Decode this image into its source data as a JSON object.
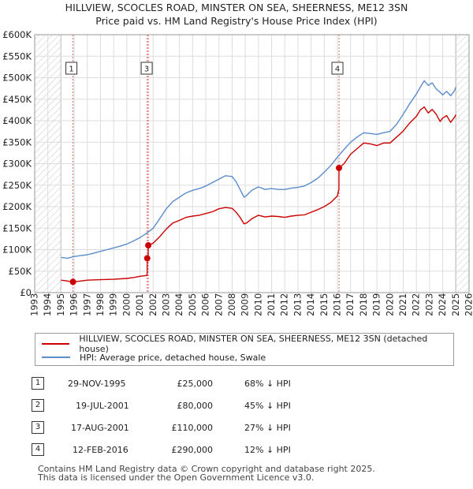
{
  "title_line1": "HILLVIEW, SCOCLES ROAD, MINSTER ON SEA, SHEERNESS, ME12 3SN",
  "title_line2": "Price paid vs. HM Land Registry's House Price Index (HPI)",
  "chart_data": {
    "type": "line",
    "title": "HILLVIEW, SCOCLES ROAD, MINSTER ON SEA, SHEERNESS, ME12 3SN",
    "subtitle": "Price paid vs. HM Land Registry's House Price Index (HPI)",
    "xlabel": "",
    "ylabel": "",
    "xlim": [
      1993,
      2026
    ],
    "ylim": [
      0,
      600000
    ],
    "grid": true,
    "x_ticks": [
      1993,
      1994,
      1995,
      1996,
      1997,
      1998,
      1999,
      2000,
      2001,
      2002,
      2003,
      2004,
      2005,
      2006,
      2007,
      2008,
      2009,
      2010,
      2011,
      2012,
      2013,
      2014,
      2015,
      2016,
      2017,
      2018,
      2019,
      2020,
      2021,
      2022,
      2023,
      2024,
      2025,
      2026
    ],
    "y_ticks": [
      0,
      50000,
      100000,
      150000,
      200000,
      250000,
      300000,
      350000,
      400000,
      450000,
      500000,
      550000,
      600000
    ],
    "y_tick_labels": [
      "£0",
      "£50K",
      "£100K",
      "£150K",
      "£200K",
      "£250K",
      "£300K",
      "£350K",
      "£400K",
      "£450K",
      "£500K",
      "£550K",
      "£600K"
    ],
    "hatched_ranges": [
      [
        1993,
        1995
      ],
      [
        2025,
        2026
      ]
    ],
    "series": [
      {
        "name": "HILLVIEW, SCOCLES ROAD, MINSTER ON SEA, SHEERNESS, ME12 3SN (detached house)",
        "color": "#cc0000",
        "x": [
          1995.0,
          1995.5,
          1995.91,
          1996.5,
          1997,
          1998,
          1999,
          2000,
          2000.5,
          2001.0,
          2001.54,
          2001.55,
          2001.62,
          2001.63,
          2002,
          2002.5,
          2003,
          2003.5,
          2004,
          2004.5,
          2005,
          2005.5,
          2006,
          2006.5,
          2007,
          2007.5,
          2008,
          2008.3,
          2008.6,
          2008.9,
          2009.1,
          2009.5,
          2010,
          2010.5,
          2011,
          2011.5,
          2012,
          2012.5,
          2013,
          2013.5,
          2014,
          2014.5,
          2015,
          2015.5,
          2016.0,
          2016.11,
          2016.12,
          2016.5,
          2017,
          2017.5,
          2018,
          2018.5,
          2019,
          2019.5,
          2020,
          2020.5,
          2021,
          2021.5,
          2022,
          2022.3,
          2022.6,
          2022.9,
          2023.2,
          2023.5,
          2023.8,
          2024.0,
          2024.3,
          2024.6,
          2024.9,
          2025.0
        ],
        "y": [
          29000,
          27000,
          25000,
          27000,
          29000,
          30000,
          31000,
          33000,
          35000,
          38000,
          40000,
          80000,
          80000,
          110000,
          115000,
          130000,
          148000,
          162000,
          168000,
          175000,
          178000,
          180000,
          184000,
          188000,
          195000,
          198000,
          196000,
          187000,
          175000,
          160000,
          162000,
          172000,
          180000,
          176000,
          178000,
          177000,
          175000,
          178000,
          180000,
          181000,
          187000,
          193000,
          200000,
          210000,
          225000,
          240000,
          290000,
          300000,
          322000,
          335000,
          348000,
          346000,
          342000,
          348000,
          348000,
          362000,
          376000,
          395000,
          410000,
          425000,
          432000,
          418000,
          426000,
          415000,
          398000,
          406000,
          412000,
          396000,
          408000,
          414000
        ]
      },
      {
        "name": "HPI: Average price, detached house, Swale",
        "color": "#5b8ccc",
        "x": [
          1995.0,
          1995.5,
          1996,
          1996.5,
          1997,
          1997.5,
          1998,
          1998.5,
          1999,
          1999.5,
          2000,
          2000.5,
          2001,
          2001.5,
          2002,
          2002.5,
          2003,
          2003.5,
          2004,
          2004.5,
          2005,
          2005.5,
          2006,
          2006.5,
          2007,
          2007.5,
          2008,
          2008.3,
          2008.6,
          2008.9,
          2009.1,
          2009.5,
          2010,
          2010.5,
          2011,
          2011.5,
          2012,
          2012.5,
          2013,
          2013.5,
          2014,
          2014.5,
          2015,
          2015.5,
          2016,
          2016.5,
          2017,
          2017.5,
          2018,
          2018.5,
          2019,
          2019.5,
          2020,
          2020.5,
          2021,
          2021.5,
          2022,
          2022.3,
          2022.6,
          2022.9,
          2023.2,
          2023.5,
          2023.8,
          2024.0,
          2024.3,
          2024.6,
          2024.9,
          2025.0
        ],
        "y": [
          82000,
          80000,
          84000,
          86000,
          88000,
          92000,
          96000,
          100000,
          104000,
          108000,
          113000,
          120000,
          128000,
          138000,
          150000,
          172000,
          195000,
          212000,
          222000,
          232000,
          238000,
          242000,
          248000,
          256000,
          264000,
          272000,
          270000,
          258000,
          240000,
          222000,
          226000,
          238000,
          246000,
          240000,
          242000,
          240000,
          240000,
          243000,
          245000,
          248000,
          256000,
          266000,
          280000,
          296000,
          315000,
          333000,
          350000,
          362000,
          372000,
          370000,
          368000,
          372000,
          375000,
          392000,
          415000,
          440000,
          462000,
          478000,
          493000,
          482000,
          488000,
          474000,
          466000,
          460000,
          468000,
          458000,
          470000,
          478000
        ]
      }
    ],
    "sale_markers": [
      {
        "label": "1",
        "x": 1995.91,
        "y": 25000
      },
      {
        "label": "2",
        "x": 2001.55,
        "y": 80000
      },
      {
        "label": "3",
        "x": 2001.63,
        "y": 110000
      },
      {
        "label": "4",
        "x": 2016.12,
        "y": 290000
      }
    ],
    "annotation_boxes": [
      {
        "label": "1",
        "x": 1995.91
      },
      {
        "label": "3",
        "x": 2001.63
      },
      {
        "label": "4",
        "x": 2016.12
      }
    ]
  },
  "legend": {
    "items": [
      {
        "label": "HILLVIEW, SCOCLES ROAD, MINSTER ON SEA, SHEERNESS, ME12 3SN (detached house)",
        "color": "#cc0000"
      },
      {
        "label": "HPI: Average price, detached house, Swale",
        "color": "#5b8ccc"
      }
    ]
  },
  "transactions": [
    {
      "num": "1",
      "date": "29-NOV-1995",
      "price": "£25,000",
      "hpi": "68% ↓ HPI"
    },
    {
      "num": "2",
      "date": "19-JUL-2001",
      "price": "£80,000",
      "hpi": "45% ↓ HPI"
    },
    {
      "num": "3",
      "date": "17-AUG-2001",
      "price": "£110,000",
      "hpi": "27% ↓ HPI"
    },
    {
      "num": "4",
      "date": "12-FEB-2016",
      "price": "£290,000",
      "hpi": "12% ↓ HPI"
    }
  ],
  "footer_line1": "Contains HM Land Registry data © Crown copyright and database right 2025.",
  "footer_line2": "This data is licensed under the Open Government Licence v3.0."
}
